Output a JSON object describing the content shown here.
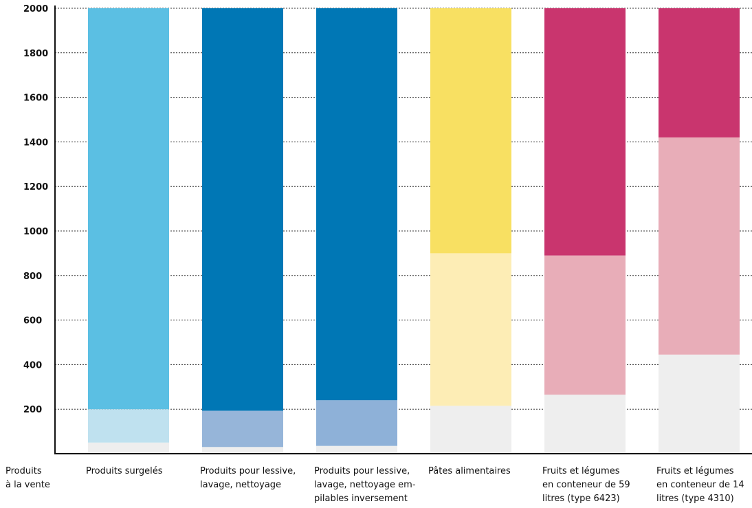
{
  "chart_data": {
    "type": "bar",
    "stacked": true,
    "ylim": [
      0,
      2000
    ],
    "yticks": [
      200,
      400,
      600,
      800,
      1000,
      1200,
      1400,
      1600,
      1800,
      2000
    ],
    "grid": true,
    "x_axis_title": [
      "Produits",
      "à la vente"
    ],
    "categories": [
      {
        "label": [
          "Produits surgelés"
        ],
        "segments": [
          50,
          150,
          1800
        ],
        "colors": [
          "#eeeeee",
          "#bfe1ef",
          "#5bbfe3"
        ]
      },
      {
        "label": [
          "Produits pour lessive,",
          "lavage, nettoyage"
        ],
        "segments": [
          30,
          163,
          1807
        ],
        "colors": [
          "#eeeeee",
          "#96b5d9",
          "#0077b5"
        ]
      },
      {
        "label": [
          "Produits pour lessive,",
          "lavage, nettoyage em-",
          "pilables inversement"
        ],
        "segments": [
          35,
          205,
          1760
        ],
        "colors": [
          "#eeeeee",
          "#8eb1d8",
          "#0077b5"
        ]
      },
      {
        "label": [
          "Pâtes alimentaires"
        ],
        "segments": [
          215,
          685,
          1100
        ],
        "colors": [
          "#eeeeee",
          "#fdedb5",
          "#f8e062"
        ]
      },
      {
        "label": [
          "Fruits et légumes",
          "en conteneur de 59",
          "litres (type 6423)"
        ],
        "segments": [
          265,
          625,
          1110
        ],
        "colors": [
          "#eeeeee",
          "#e8adb8",
          "#c9356e"
        ]
      },
      {
        "label": [
          "Fruits et légumes",
          "en conteneur de 14",
          "litres (type 4310)"
        ],
        "segments": [
          445,
          975,
          580
        ],
        "colors": [
          "#eeeeee",
          "#e8adb8",
          "#c9356e"
        ]
      }
    ]
  }
}
